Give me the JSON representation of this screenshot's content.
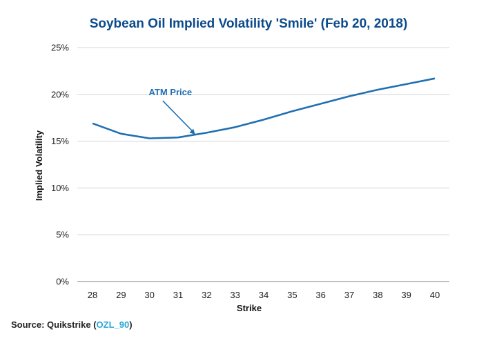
{
  "chart_data": {
    "type": "line",
    "title": "Soybean Oil Implied Volatility 'Smile' (Feb 20, 2018)",
    "xlabel": "Strike",
    "ylabel": "Implied Volatility",
    "x": [
      28,
      29,
      30,
      31,
      32,
      33,
      34,
      35,
      36,
      37,
      38,
      39,
      40
    ],
    "series": [
      {
        "values": [
          16.9,
          15.8,
          15.3,
          15.4,
          15.9,
          16.5,
          17.3,
          18.2,
          19.0,
          19.8,
          20.5,
          21.1,
          21.7
        ]
      }
    ],
    "ylim": [
      0,
      25
    ],
    "yticks": [
      0,
      5,
      10,
      15,
      20,
      25
    ],
    "ytick_labels": [
      "0%",
      "5%",
      "10%",
      "15%",
      "20%",
      "25%"
    ],
    "xtick_labels": [
      "28",
      "29",
      "30",
      "31",
      "32",
      "33",
      "34",
      "35",
      "36",
      "37",
      "38",
      "39",
      "40"
    ],
    "grid": "horizontal",
    "line_color": "#1f6fb2",
    "annotations": [
      {
        "text": "ATM Price",
        "x": 31.6,
        "y": 15.7
      }
    ]
  },
  "source": {
    "prefix": "Source: Quikstrike (",
    "link_text": "OZL_90",
    "suffix": ")"
  }
}
